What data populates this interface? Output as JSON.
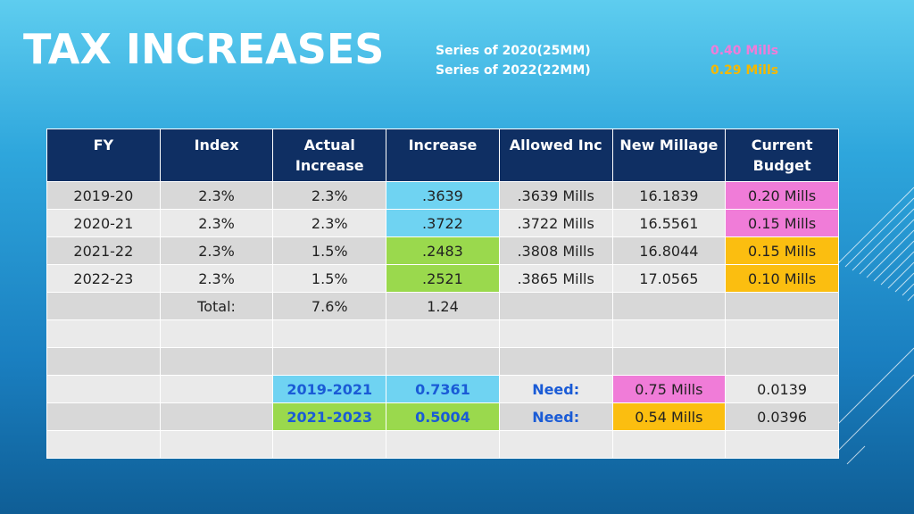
{
  "title": "TAX INCREASES",
  "series": [
    {
      "label": "Series of 2020(25MM)",
      "mills": "0.40 Mills"
    },
    {
      "label": "Series of 2022(22MM)",
      "mills": "0.29 Mills"
    }
  ],
  "headers": [
    "FY",
    "Index",
    "Actual Increase",
    "Increase",
    "Allowed Inc",
    "New Millage",
    "Current Budget"
  ],
  "rows": [
    [
      "2019-20",
      "2.3%",
      "2.3%",
      ".3639",
      ".3639 Mills",
      "16.1839",
      "0.20 Mills"
    ],
    [
      "2020-21",
      "2.3%",
      "2.3%",
      ".3722",
      ".3722 Mills",
      "16.5561",
      "0.15 Mills"
    ],
    [
      "2021-22",
      "2.3%",
      "1.5%",
      ".2483",
      ".3808 Mills",
      "16.8044",
      "0.15 Mills"
    ],
    [
      "2022-23",
      "2.3%",
      "1.5%",
      ".2521",
      ".3865 Mills",
      "17.0565",
      "0.10 Mills"
    ]
  ],
  "total": {
    "label": "Total:",
    "actual": "7.6%",
    "increase": "1.24"
  },
  "needs": [
    {
      "period": "2019-2021",
      "value": "0.7361",
      "need_label": "Need:",
      "mills": "0.75 Mills",
      "extra": "0.0139"
    },
    {
      "period": "2021-2023",
      "value": "0.5004",
      "need_label": "Need:",
      "mills": "0.54 Mills",
      "extra": "0.0396"
    }
  ],
  "colors": {
    "header_bg": "#0f2f63",
    "cyan": "#6fd3f2",
    "green": "#9ad94d",
    "pink": "#f07cd8",
    "orange": "#fbbe10",
    "need_text": "#1a5bd6"
  }
}
